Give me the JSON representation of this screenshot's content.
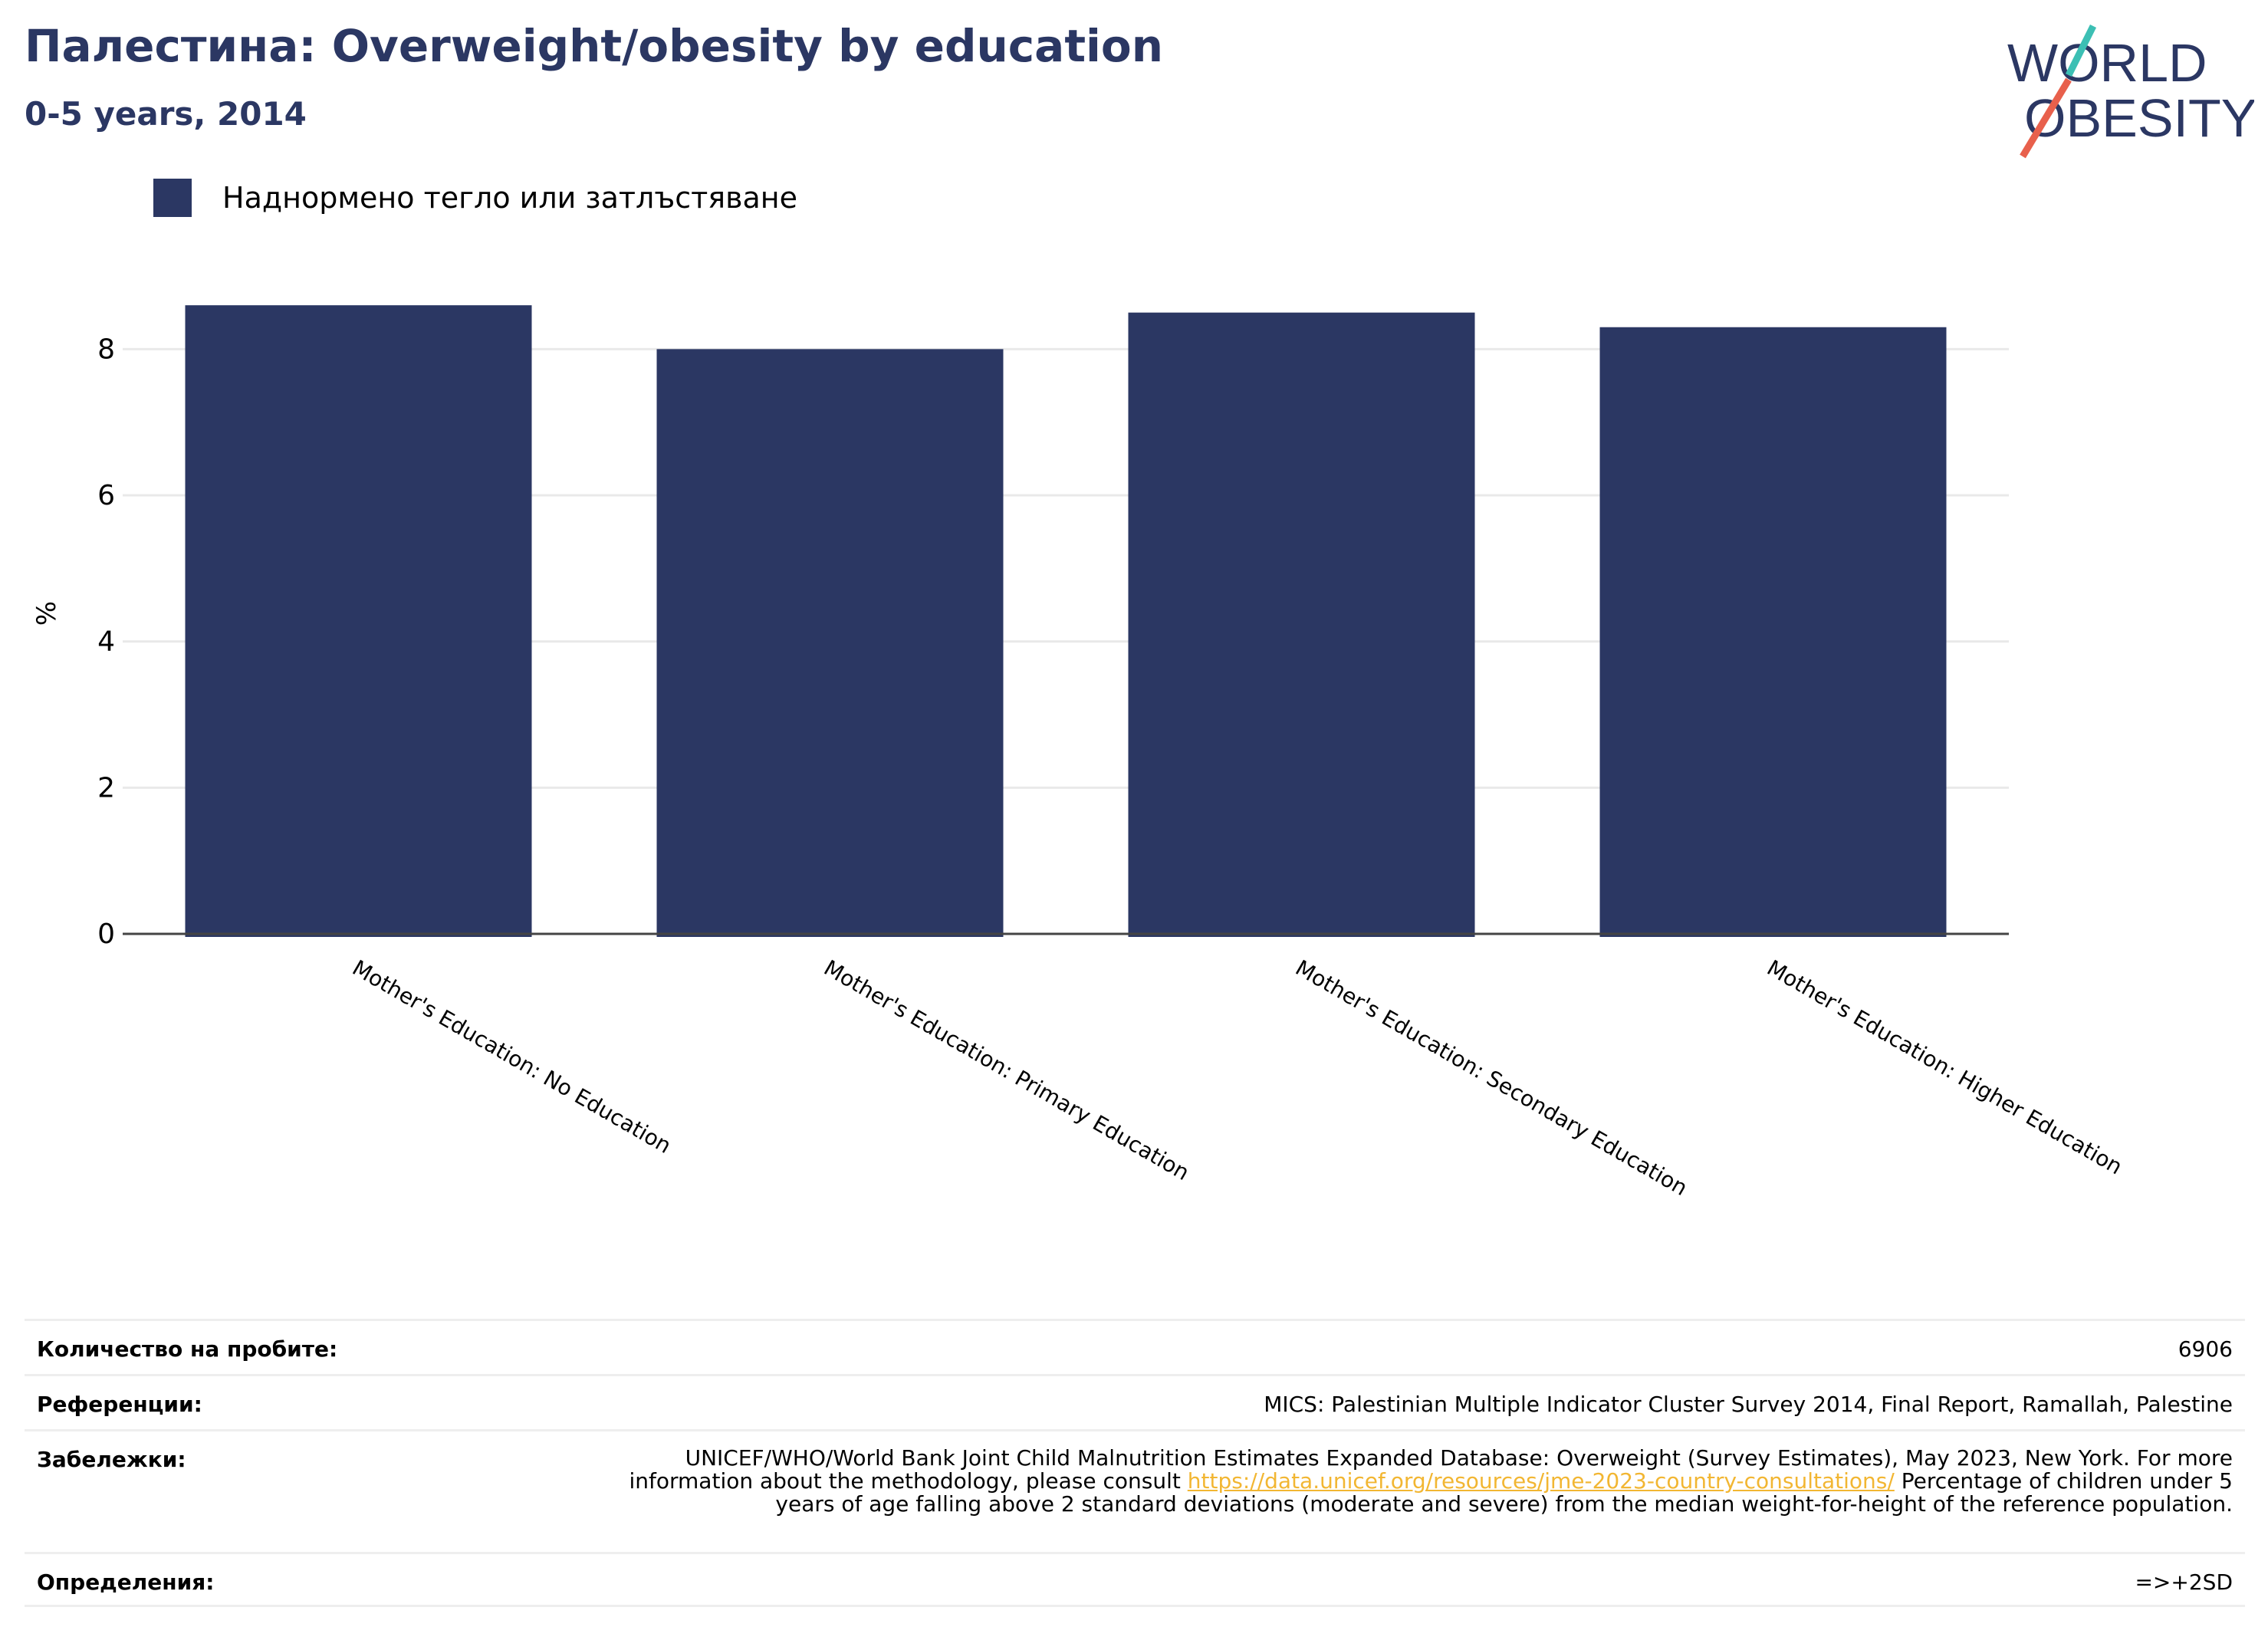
{
  "header": {
    "title": "Палестина: Overweight/obesity by education",
    "subtitle": "0-5 years, 2014"
  },
  "logo": {
    "line1": "WORLD",
    "line2": "OBESITY"
  },
  "colors": {
    "bar": "#2b3763",
    "title": "#2b3763",
    "link": "#f2b632",
    "logo_teal": "#3cbfb4",
    "logo_red": "#e8604c"
  },
  "chart_data": {
    "type": "bar",
    "categories": [
      "Mother's Education: No Education",
      "Mother's Education: Primary Education",
      "Mother's Education: Secondary Education",
      "Mother's Education: Higher Education"
    ],
    "series": [
      {
        "name": "Наднормено тегло или затлъстяване",
        "values": [
          8.6,
          8.0,
          8.5,
          8.3
        ]
      }
    ],
    "ylabel": "%",
    "ylim": [
      0,
      9
    ],
    "yticks": [
      0,
      2,
      4,
      6,
      8
    ],
    "grid": true,
    "legend": "top-left"
  },
  "info": {
    "sample_label": "Количество на пробите:",
    "sample_value": "6906",
    "refs_label": "Референции:",
    "refs_value": "MICS: Palestinian Multiple Indicator Cluster Survey 2014, Final Report, Ramallah, Palestine",
    "notes_label": "Забележки:",
    "notes_pre": "UNICEF/WHO/World Bank Joint Child Malnutrition Estimates Expanded Database: Overweight (Survey Estimates), May 2023, New York. For more information about the methodology, please consult ",
    "notes_link": "https://data.unicef.org/resources/jme-2023-country-consultations/",
    "notes_post": " Percentage of children under 5 years of age falling above 2 standard deviations (moderate and severe) from the median weight-for-height of the reference population.",
    "defs_label": "Определения:",
    "defs_value": "=>+2SD"
  }
}
